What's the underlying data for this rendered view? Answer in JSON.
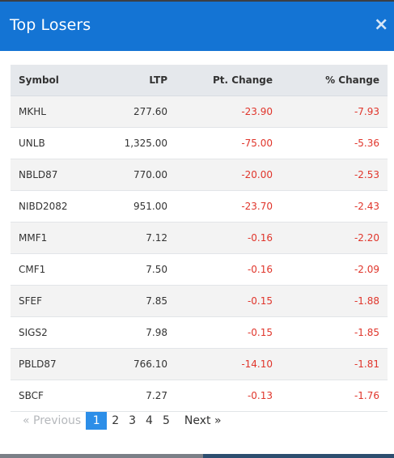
{
  "modal": {
    "title": "Top Losers",
    "close_icon": "×"
  },
  "table": {
    "headers": {
      "symbol": "Symbol",
      "ltp": "LTP",
      "pt_change": "Pt. Change",
      "pct_change": "% Change"
    },
    "rows": [
      {
        "symbol": "MKHL",
        "ltp": "277.60",
        "pt_change": "-23.90",
        "pct_change": "-7.93"
      },
      {
        "symbol": "UNLB",
        "ltp": "1,325.00",
        "pt_change": "-75.00",
        "pct_change": "-5.36"
      },
      {
        "symbol": "NBLD87",
        "ltp": "770.00",
        "pt_change": "-20.00",
        "pct_change": "-2.53"
      },
      {
        "symbol": "NIBD2082",
        "ltp": "951.00",
        "pt_change": "-23.70",
        "pct_change": "-2.43"
      },
      {
        "symbol": "MMF1",
        "ltp": "7.12",
        "pt_change": "-0.16",
        "pct_change": "-2.20"
      },
      {
        "symbol": "CMF1",
        "ltp": "7.50",
        "pt_change": "-0.16",
        "pct_change": "-2.09"
      },
      {
        "symbol": "SFEF",
        "ltp": "7.85",
        "pt_change": "-0.15",
        "pct_change": "-1.88"
      },
      {
        "symbol": "SIGS2",
        "ltp": "7.98",
        "pt_change": "-0.15",
        "pct_change": "-1.85"
      },
      {
        "symbol": "PBLD87",
        "ltp": "766.10",
        "pt_change": "-14.10",
        "pct_change": "-1.81"
      },
      {
        "symbol": "SBCF",
        "ltp": "7.27",
        "pt_change": "-0.13",
        "pct_change": "-1.76"
      }
    ]
  },
  "pagination": {
    "previous": "« Previous",
    "pages": [
      "1",
      "2",
      "3",
      "4",
      "5"
    ],
    "active_page": "1",
    "next": "Next »"
  },
  "colors": {
    "header_bg": "#1474d4",
    "negative": "#e0352b",
    "active_page": "#2c8ee8"
  }
}
